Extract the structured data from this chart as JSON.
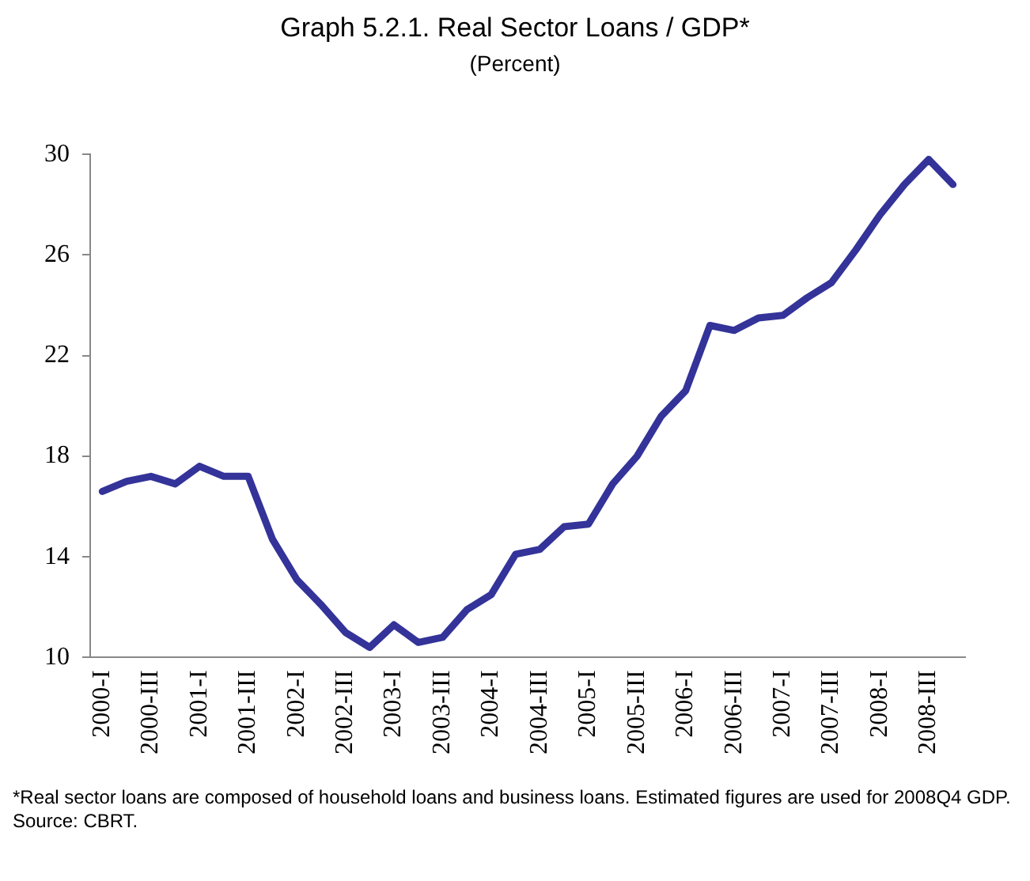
{
  "chart_data": {
    "type": "line",
    "title": "Graph 5.2.1. Real Sector Loans / GDP*",
    "subtitle": "(Percent)",
    "categories": [
      "2000-I",
      null,
      "2000-III",
      null,
      "2001-I",
      null,
      "2001-III",
      null,
      "2002-I",
      null,
      "2002-III",
      null,
      "2003-I",
      null,
      "2003-III",
      null,
      "2004-I",
      null,
      "2004-III",
      null,
      "2005-I",
      null,
      "2005-III",
      null,
      "2006-I",
      null,
      "2006-III",
      null,
      "2007-I",
      null,
      "2007-III",
      null,
      "2008-I",
      null,
      "2008-III",
      null
    ],
    "series": [
      {
        "color": "#333399",
        "values": [
          16.6,
          17.0,
          17.2,
          16.9,
          17.6,
          17.2,
          17.2,
          14.7,
          13.1,
          12.1,
          11.0,
          10.4,
          11.3,
          10.6,
          10.8,
          11.9,
          12.5,
          14.1,
          14.3,
          15.2,
          15.3,
          16.9,
          18.0,
          19.6,
          20.6,
          23.2,
          23.0,
          23.5,
          23.6,
          24.3,
          24.9,
          26.2,
          27.6,
          28.8,
          29.8,
          28.8
        ]
      }
    ],
    "ylim": [
      10,
      30
    ],
    "yticks": [
      10,
      14,
      18,
      22,
      26,
      30
    ],
    "grid": false,
    "legend": false,
    "marker": "none",
    "line_style": "solid",
    "annotations": [
      "*Real sector loans are composed of household loans and business loans. Estimated figures are used  for 2008Q4 GDP.",
      "Source: CBRT."
    ]
  }
}
